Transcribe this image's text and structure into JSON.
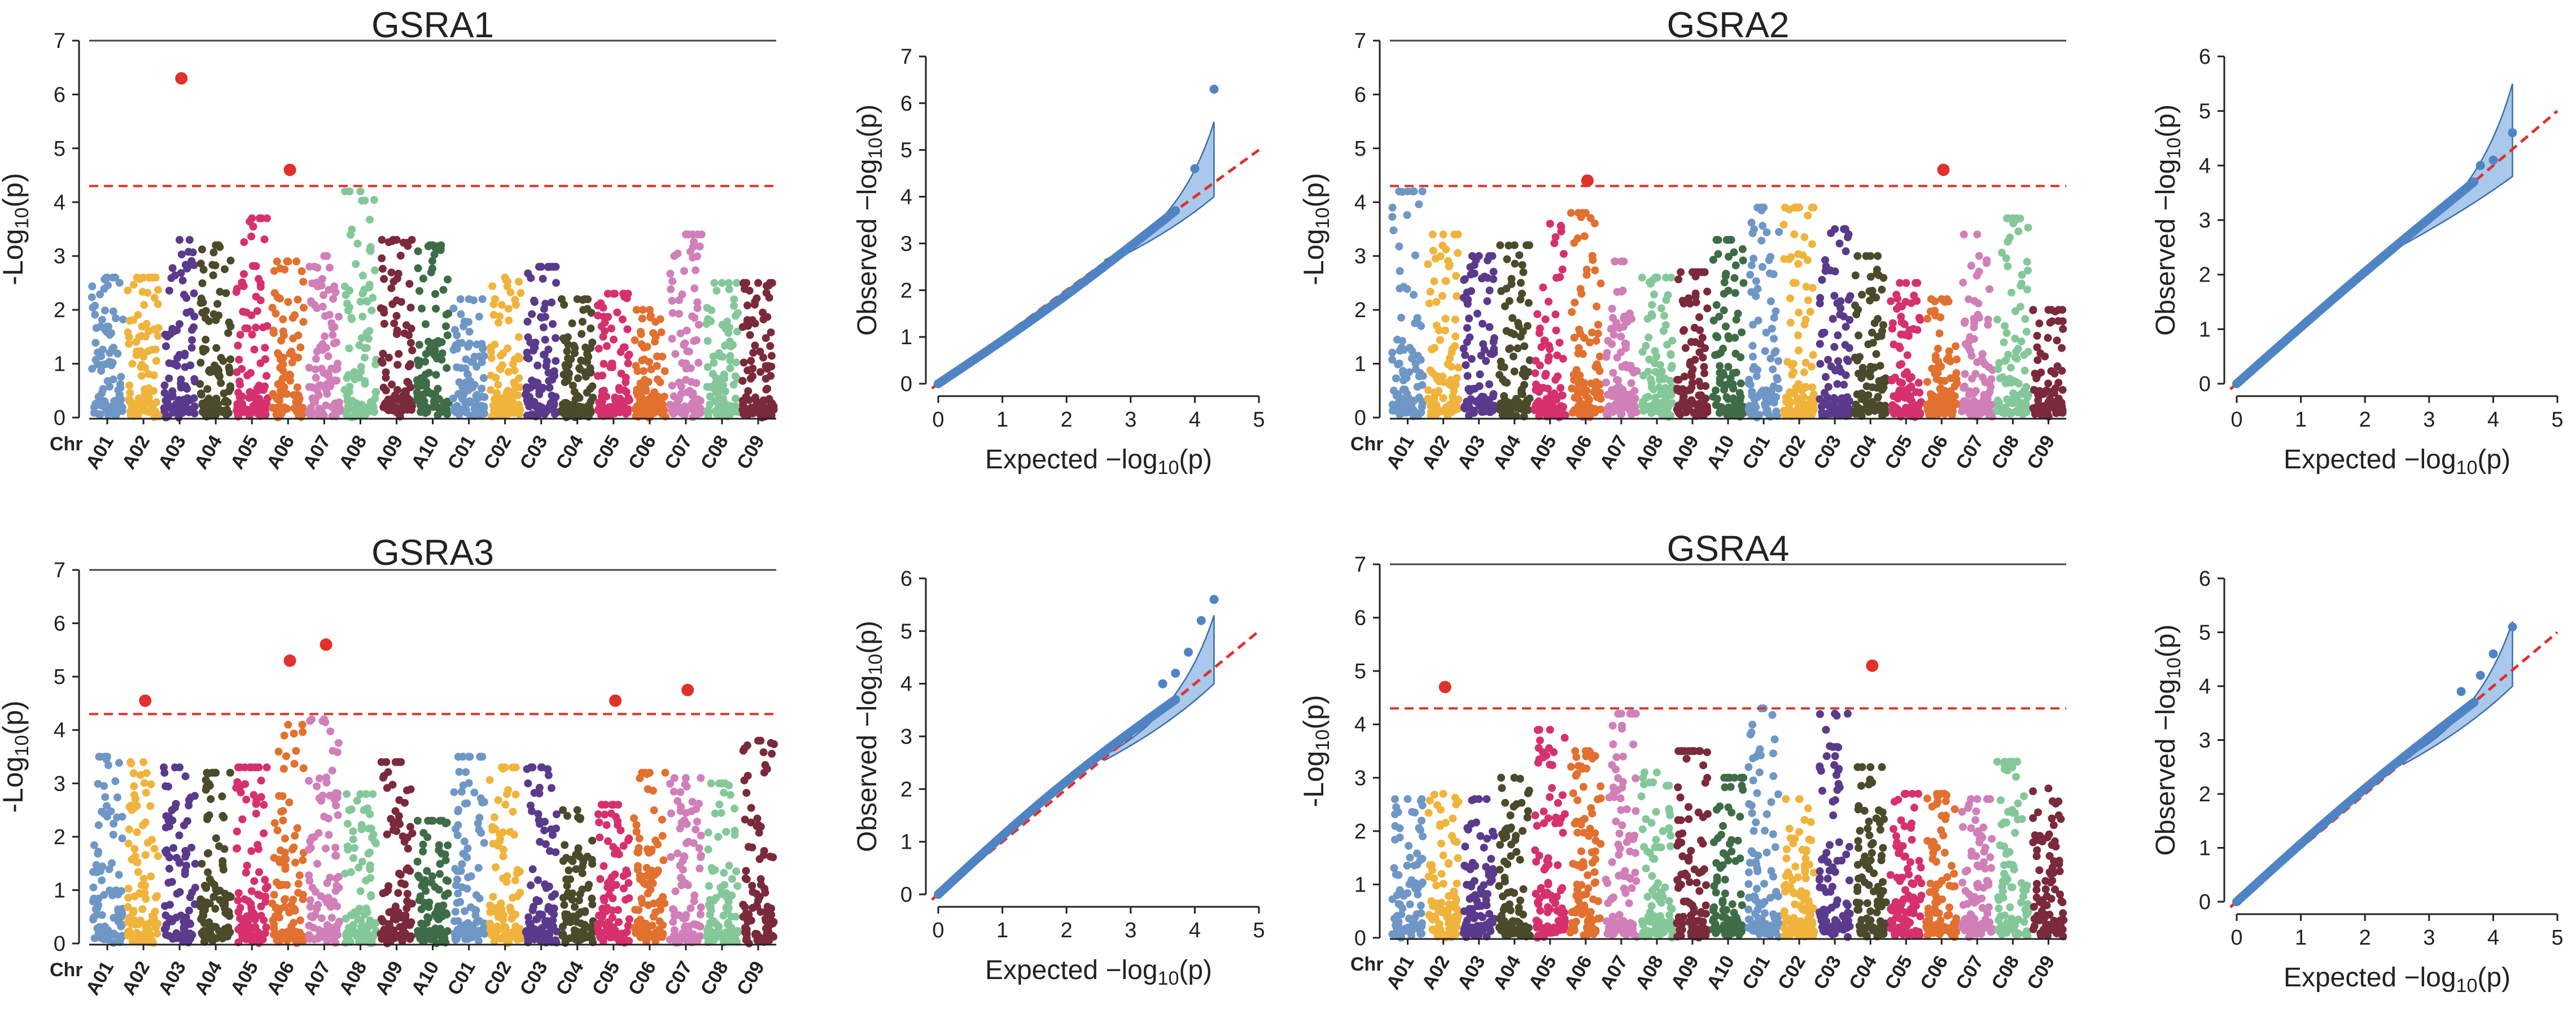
{
  "figure": {
    "chr_prefix": "Chr",
    "chromosomes": [
      "A01",
      "A02",
      "A03",
      "A04",
      "A05",
      "A06",
      "A07",
      "A08",
      "A09",
      "A10",
      "C01",
      "C02",
      "C03",
      "C04",
      "C05",
      "C06",
      "C07",
      "C08",
      "C09"
    ],
    "chr_colors": [
      "#6f97c6",
      "#f0b43c",
      "#5a3a8c",
      "#4b4a2a",
      "#d7306e",
      "#e2702f",
      "#d17fb8",
      "#84c89a",
      "#7a2a3a",
      "#3e6c46",
      "#6f97c6",
      "#f0b43c",
      "#5a3a8c",
      "#4b4a2a",
      "#d7306e",
      "#e2702f",
      "#d17fb8",
      "#84c89a",
      "#7a2a3a"
    ],
    "highlight_color": "#e0312a",
    "qq_point_color": "#4f84c4",
    "band_color": "#a9c8ec"
  },
  "chart_data": [
    {
      "type": "scatter",
      "kind": "manhattan",
      "title": "GSRA1",
      "ylabel_main": "-Log",
      "ylabel_sub": "10",
      "ylabel_arg": "(p)",
      "ylim": [
        0,
        7
      ],
      "yticks": [
        "0",
        "1",
        "2",
        "3",
        "4",
        "5",
        "6",
        "7"
      ],
      "threshold": 4.3,
      "chr_peaks": [
        2.6,
        2.6,
        3.3,
        3.2,
        3.7,
        2.9,
        3.0,
        4.2,
        3.3,
        3.2,
        2.2,
        2.6,
        2.8,
        2.2,
        2.3,
        2.0,
        3.4,
        2.5,
        2.5
      ],
      "significant": [
        {
          "chr": "A03",
          "value": 6.3
        },
        {
          "chr": "A06",
          "value": 4.6
        }
      ]
    },
    {
      "type": "scatter",
      "kind": "qq",
      "xlabel": "Expected  −log",
      "ylabel": "Observed  −log",
      "label_sub": "10",
      "label_arg": "(p)",
      "xlim": [
        0,
        5
      ],
      "ylim": [
        0,
        7
      ],
      "xticks": [
        "0",
        "1",
        "2",
        "3",
        "4",
        "5"
      ],
      "yticks": [
        "0",
        "1",
        "2",
        "3",
        "4",
        "5",
        "6",
        "7"
      ],
      "max_expected": 4.3,
      "deviation": -0.1,
      "band_top": 5.6,
      "band_bottom": 4.0,
      "tail": [
        {
          "x": 4.0,
          "y": 4.6
        },
        {
          "x": 4.3,
          "y": 6.3
        }
      ]
    },
    {
      "type": "scatter",
      "kind": "manhattan",
      "title": "GSRA2",
      "ylabel_main": "-Log",
      "ylabel_sub": "10",
      "ylabel_arg": "(p)",
      "ylim": [
        0,
        7
      ],
      "yticks": [
        "0",
        "1",
        "2",
        "3",
        "4",
        "5",
        "6",
        "7"
      ],
      "threshold": 4.3,
      "chr_peaks": [
        4.2,
        3.4,
        3.0,
        3.2,
        3.6,
        3.8,
        2.9,
        2.6,
        2.7,
        3.3,
        3.9,
        3.9,
        3.5,
        3.0,
        2.5,
        2.2,
        3.4,
        3.7,
        2.0
      ],
      "significant": [
        {
          "chr": "A06",
          "value": 4.4
        },
        {
          "chr": "C06",
          "value": 4.6
        }
      ]
    },
    {
      "type": "scatter",
      "kind": "qq",
      "xlabel": "Expected  −log",
      "ylabel": "Observed  −log",
      "label_sub": "10",
      "label_arg": "(p)",
      "xlim": [
        0,
        5
      ],
      "ylim": [
        0,
        6
      ],
      "xticks": [
        "0",
        "1",
        "2",
        "3",
        "4",
        "5"
      ],
      "yticks": [
        "0",
        "1",
        "2",
        "3",
        "4",
        "5",
        "6"
      ],
      "max_expected": 4.3,
      "deviation": 0.05,
      "band_top": 5.5,
      "band_bottom": 3.8,
      "tail": [
        {
          "x": 3.8,
          "y": 4.0
        },
        {
          "x": 4.0,
          "y": 4.1
        },
        {
          "x": 4.3,
          "y": 4.6
        }
      ]
    },
    {
      "type": "scatter",
      "kind": "manhattan",
      "title": "GSRA3",
      "ylabel_main": "-Log",
      "ylabel_sub": "10",
      "ylabel_arg": "(p)",
      "ylim": [
        0,
        7
      ],
      "yticks": [
        "0",
        "1",
        "2",
        "3",
        "4",
        "5",
        "6",
        "7"
      ],
      "threshold": 4.3,
      "chr_peaks": [
        3.5,
        3.4,
        3.3,
        3.2,
        3.3,
        4.1,
        4.2,
        2.8,
        3.4,
        2.3,
        3.5,
        3.3,
        3.3,
        2.5,
        2.6,
        3.2,
        3.1,
        3.0,
        3.8
      ],
      "significant": [
        {
          "chr": "A02",
          "value": 4.55
        },
        {
          "chr": "A06",
          "value": 5.3
        },
        {
          "chr": "A07",
          "value": 5.6
        },
        {
          "chr": "C05",
          "value": 4.55
        },
        {
          "chr": "C07",
          "value": 4.75
        }
      ]
    },
    {
      "type": "scatter",
      "kind": "qq",
      "xlabel": "Expected  −log",
      "ylabel": "Observed  −log",
      "label_sub": "10",
      "label_arg": "(p)",
      "xlim": [
        0,
        5
      ],
      "ylim": [
        0,
        6
      ],
      "xticks": [
        "0",
        "1",
        "2",
        "3",
        "4",
        "5"
      ],
      "yticks": [
        "0",
        "1",
        "2",
        "3",
        "4",
        "5",
        "6"
      ],
      "max_expected": 4.3,
      "deviation": 0.15,
      "band_top": 5.3,
      "band_bottom": 4.0,
      "tail": [
        {
          "x": 3.5,
          "y": 4.0
        },
        {
          "x": 3.7,
          "y": 4.2
        },
        {
          "x": 3.9,
          "y": 4.6
        },
        {
          "x": 4.1,
          "y": 5.2
        },
        {
          "x": 4.3,
          "y": 5.6
        }
      ]
    },
    {
      "type": "scatter",
      "kind": "manhattan",
      "title": "GSRA4",
      "ylabel_main": "-Log",
      "ylabel_sub": "10",
      "ylabel_arg": "(p)",
      "ylim": [
        0,
        7
      ],
      "yticks": [
        "0",
        "1",
        "2",
        "3",
        "4",
        "5",
        "6",
        "7"
      ],
      "threshold": 4.3,
      "chr_peaks": [
        2.6,
        2.7,
        2.6,
        3.0,
        3.9,
        3.5,
        4.2,
        3.1,
        3.5,
        3.0,
        4.3,
        2.6,
        4.2,
        3.2,
        2.7,
        2.7,
        2.6,
        3.3,
        2.8
      ],
      "significant": [
        {
          "chr": "A02",
          "value": 4.7
        },
        {
          "chr": "C04",
          "value": 5.1
        }
      ]
    },
    {
      "type": "scatter",
      "kind": "qq",
      "xlabel": "Expected  −log",
      "ylabel": "Observed  −log",
      "label_sub": "10",
      "label_arg": "(p)",
      "xlim": [
        0,
        5
      ],
      "ylim": [
        0,
        6
      ],
      "xticks": [
        "0",
        "1",
        "2",
        "3",
        "4",
        "5"
      ],
      "yticks": [
        "0",
        "1",
        "2",
        "3",
        "4",
        "5",
        "6"
      ],
      "max_expected": 4.3,
      "deviation": 0.1,
      "band_top": 5.2,
      "band_bottom": 4.0,
      "tail": [
        {
          "x": 3.5,
          "y": 3.9
        },
        {
          "x": 3.8,
          "y": 4.2
        },
        {
          "x": 4.0,
          "y": 4.6
        },
        {
          "x": 4.3,
          "y": 5.1
        }
      ]
    }
  ]
}
